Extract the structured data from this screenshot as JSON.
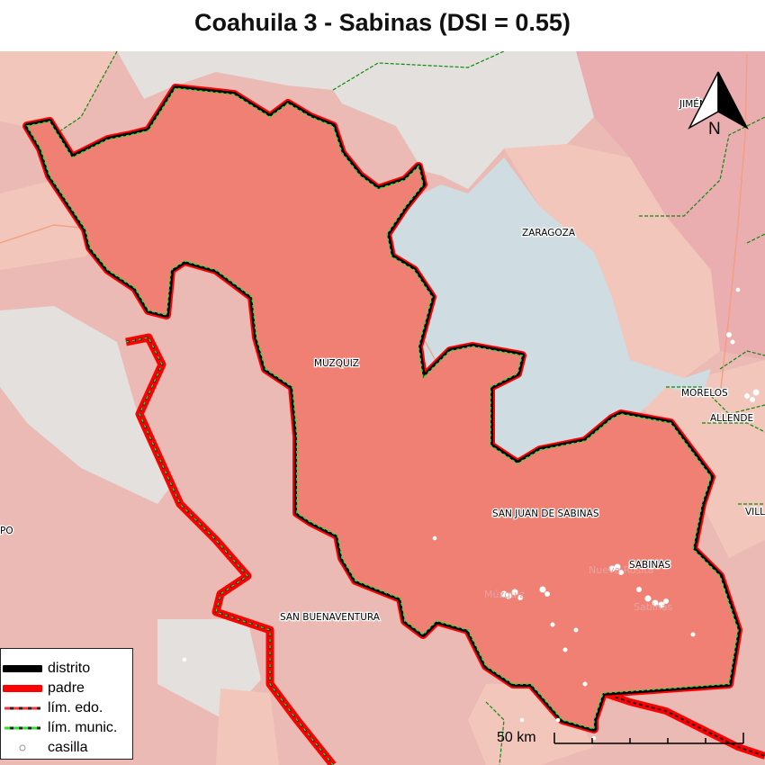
{
  "title": "Coahuila 3 - Sabinas (DSI = 0.55)",
  "municipalities": {
    "muzquiz": "MUZQUIZ",
    "zaragoza": "ZARAGOZA",
    "san_juan_de_sabinas": "SAN JUAN DE SABINAS",
    "sabinas": "SABINAS",
    "san_buenaventura": "SAN BUENAVENTURA",
    "morelos": "MORELOS",
    "allende": "ALLENDE",
    "jimenez_partial": "JIMÉNEZ",
    "villa_partial": "VILL",
    "ocampo_partial": "PO"
  },
  "legend": {
    "items": [
      {
        "label": "distrito"
      },
      {
        "label": "padre"
      },
      {
        "label": "lím. edo."
      },
      {
        "label": "lím. munic."
      },
      {
        "label": "casilla"
      }
    ]
  },
  "north_arrow": {
    "label": "N"
  },
  "scale": {
    "label": "50 km"
  },
  "colors": {
    "district_fill": "#f08073",
    "zaragoza_fill": "#cfdde3",
    "gray_fill": "#e3e0de",
    "light_fill": "#f2c6ba",
    "pink_fill": "#ebbab4",
    "dark_fill": "#d95f66",
    "district_border": "#000000",
    "parent_border": "#ff0000",
    "municipal_border": "#22cc22"
  }
}
